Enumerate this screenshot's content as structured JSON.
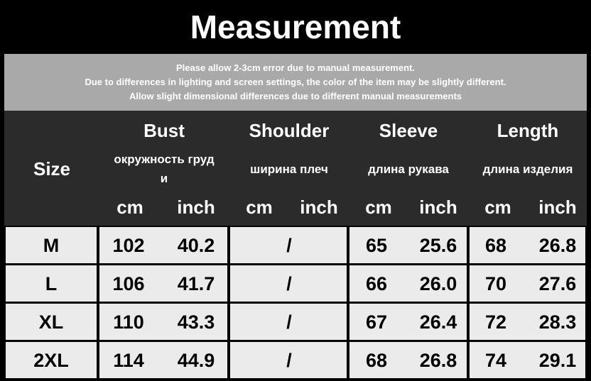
{
  "title": "Measurement",
  "notes": [
    "Please allow 2-3cm error due to manual measurement.",
    "Due to differences in lighting and screen settings, the color of the item may be slightly different.",
    "Allow slight dimensional differences due to different manual measurements"
  ],
  "header": {
    "size": "Size",
    "columns": [
      {
        "label": "Bust",
        "ru": "окружность груд",
        "ru2": "и",
        "cm": "cm",
        "inch": "inch"
      },
      {
        "label": "Shoulder",
        "ru": "ширина плеч",
        "cm": "cm",
        "inch": "inch"
      },
      {
        "label": "Sleeve",
        "ru": "длина рукава",
        "cm": "cm",
        "inch": "inch"
      },
      {
        "label": "Length",
        "ru": "длина изделия",
        "cm": "cm",
        "inch": "inch"
      }
    ]
  },
  "rows": [
    {
      "size": "M",
      "bust_cm": "102",
      "bust_in": "40.2",
      "shoulder": "/",
      "sleeve_cm": "65",
      "sleeve_in": "25.6",
      "length_cm": "68",
      "length_in": "26.8"
    },
    {
      "size": "L",
      "bust_cm": "106",
      "bust_in": "41.7",
      "shoulder": "/",
      "sleeve_cm": "66",
      "sleeve_in": "26.0",
      "length_cm": "70",
      "length_in": "27.6"
    },
    {
      "size": "XL",
      "bust_cm": "110",
      "bust_in": "43.3",
      "shoulder": "/",
      "sleeve_cm": "67",
      "sleeve_in": "26.4",
      "length_cm": "72",
      "length_in": "28.3"
    },
    {
      "size": "2XL",
      "bust_cm": "114",
      "bust_in": "44.9",
      "shoulder": "/",
      "sleeve_cm": "68",
      "sleeve_in": "26.8",
      "length_cm": "74",
      "length_in": "29.1"
    }
  ],
  "colors": {
    "title_bg": "#000000",
    "notes_bg": "#a9a9a9",
    "header_bg": "#2b2b2b",
    "cell_bg": "#ebebeb"
  }
}
